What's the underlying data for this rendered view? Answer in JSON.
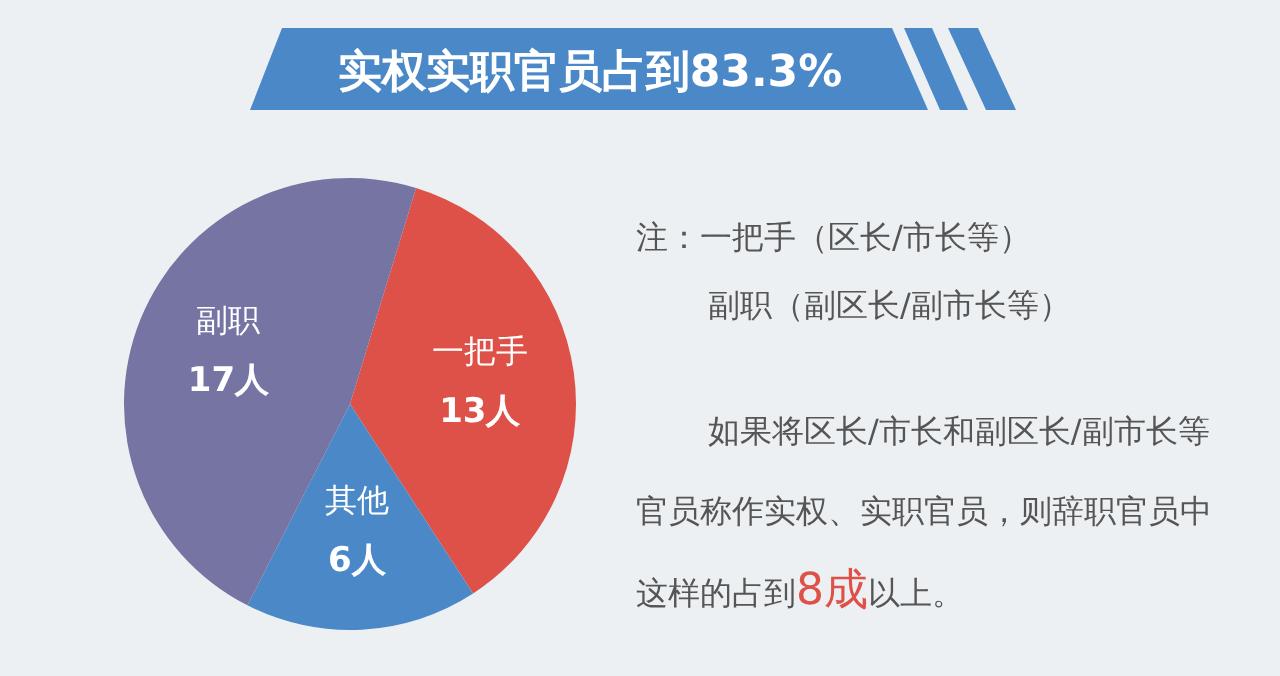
{
  "chart_data": {
    "type": "pie",
    "title": "实权实职官员占到83.3%",
    "categories": [
      "一把手",
      "其他",
      "副职"
    ],
    "values": [
      13,
      6,
      17
    ],
    "value_labels": [
      "13人",
      "6人",
      "17人"
    ],
    "colors": [
      "#de5148",
      "#4b88c8",
      "#7574a2"
    ],
    "annotations": [
      "注：一把手（区长/市长等）",
      "副职（副区长/副市长等）",
      "如果将区长/市长和副区长/副市长等官员称作实权、实职官员，则辞职官员中这样的占到",
      "8成",
      "以上。"
    ]
  }
}
